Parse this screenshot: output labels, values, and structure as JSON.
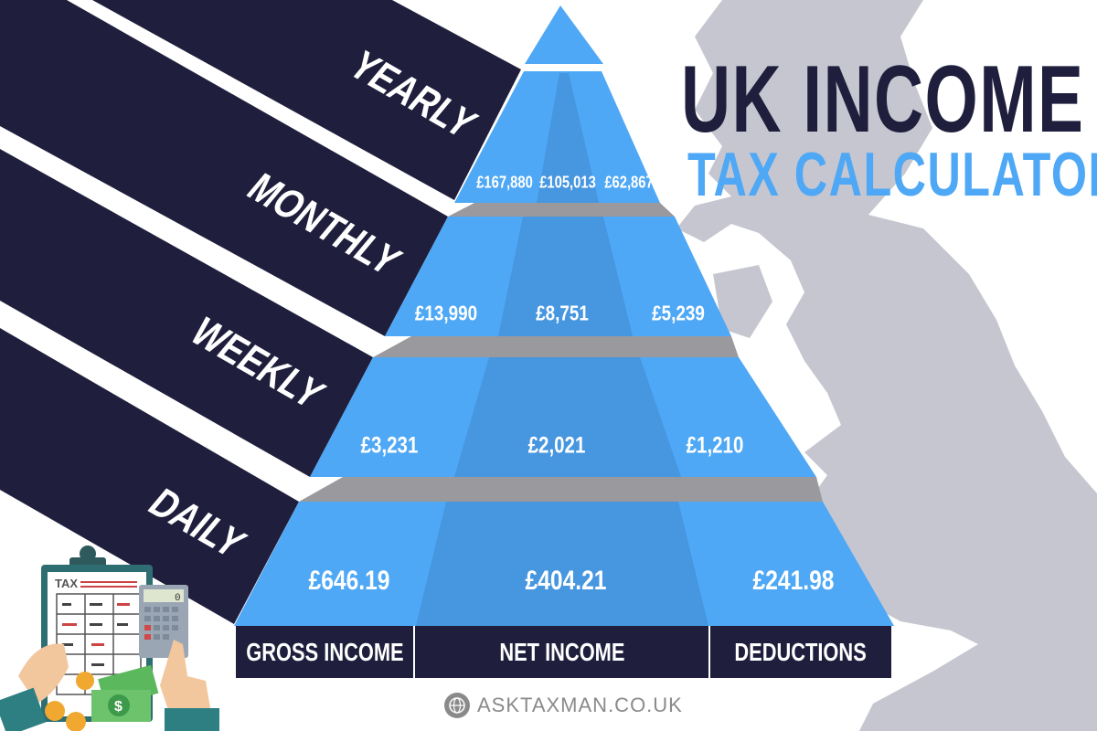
{
  "title": {
    "line1": "UK INCOME",
    "line2": "TAX CALCULATOR"
  },
  "tiers": [
    {
      "label": "YEARLY",
      "gross": "£167,880",
      "net": "£105,013",
      "deductions": "£62,867"
    },
    {
      "label": "MONTHLY",
      "gross": "£13,990",
      "net": "£8,751",
      "deductions": "£5,239"
    },
    {
      "label": "WEEKLY",
      "gross": "£3,231",
      "net": "£2,021",
      "deductions": "£1,210"
    },
    {
      "label": "DAILY",
      "gross": "£646.19",
      "net": "£404.21",
      "deductions": "£241.98"
    }
  ],
  "columns": [
    "GROSS INCOME",
    "NET INCOME",
    "DEDUCTIONS"
  ],
  "clipart": {
    "clipboard_text": "TAX",
    "calculator_display": "0"
  },
  "footer": {
    "site": "ASKTAXMAN.CO.UK",
    "icon": "globe-icon"
  },
  "colors": {
    "navy": "#1f1f3d",
    "blue": "#4ea8f5",
    "blue_dark": "#4696e0",
    "gray": "#9a9a9e",
    "map": "#c6c6d0"
  }
}
